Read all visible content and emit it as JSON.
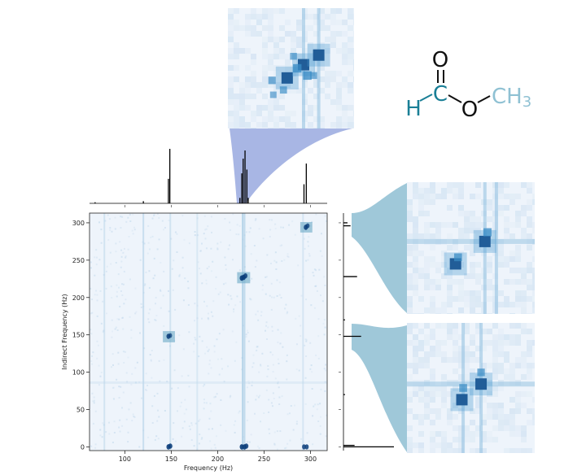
{
  "chart_data": {
    "type": "heatmap",
    "title": "",
    "xlabel": "Frequency (Hz)",
    "ylabel": "Indirect Frequency (Hz)",
    "xlim": [
      62,
      318
    ],
    "ylim": [
      -5,
      313
    ],
    "x_ticks": [
      {
        "value": 100,
        "label": "100"
      },
      {
        "value": 150,
        "label": "150"
      },
      {
        "value": 200,
        "label": "200"
      },
      {
        "value": 250,
        "label": "250"
      },
      {
        "value": 300,
        "label": "300"
      }
    ],
    "y_ticks": [
      {
        "value": 0,
        "label": "0"
      },
      {
        "value": 50,
        "label": "50"
      },
      {
        "value": 100,
        "label": "100"
      },
      {
        "value": 150,
        "label": "150"
      },
      {
        "value": 200,
        "label": "200"
      },
      {
        "value": 250,
        "label": "250"
      },
      {
        "value": 300,
        "label": "300"
      }
    ],
    "vertical_streaks": [
      {
        "x": 78,
        "strength": 0.35
      },
      {
        "x": 120,
        "strength": 0.45
      },
      {
        "x": 149,
        "strength": 0.35
      },
      {
        "x": 178,
        "strength": 0.25
      },
      {
        "x": 227,
        "strength": 0.7
      },
      {
        "x": 229,
        "strength": 0.55
      },
      {
        "x": 292,
        "strength": 0.3
      }
    ],
    "horizontal_streaks": [
      {
        "y": 86,
        "strength": 0.3
      }
    ],
    "peaks": [
      {
        "x": 147,
        "y": 148,
        "intensity": 0.85
      },
      {
        "x": 149,
        "y": 149,
        "intensity": 0.6
      },
      {
        "x": 226,
        "y": 226,
        "intensity": 0.95
      },
      {
        "x": 228,
        "y": 227,
        "intensity": 0.95
      },
      {
        "x": 230,
        "y": 229,
        "intensity": 0.8
      },
      {
        "x": 295,
        "y": 294,
        "intensity": 0.9
      },
      {
        "x": 297,
        "y": 296,
        "intensity": 0.7
      },
      {
        "x": 147,
        "y": 0,
        "intensity": 0.9
      },
      {
        "x": 149,
        "y": 1,
        "intensity": 0.9
      },
      {
        "x": 226,
        "y": 0,
        "intensity": 0.95
      },
      {
        "x": 229,
        "y": 0,
        "intensity": 0.95
      },
      {
        "x": 231,
        "y": 1,
        "intensity": 0.85
      },
      {
        "x": 293,
        "y": 0,
        "intensity": 0.8
      },
      {
        "x": 296,
        "y": 0,
        "intensity": 0.8
      }
    ],
    "highlight_boxes": [
      {
        "x0": 141,
        "x1": 154,
        "y0": 140,
        "y1": 155
      },
      {
        "x0": 221,
        "x1": 235,
        "y0": 219,
        "y1": 234
      },
      {
        "x0": 289,
        "x1": 302,
        "y0": 287,
        "y1": 301
      }
    ],
    "top_projection": {
      "lines": [
        {
          "x": 147,
          "height": 0.45
        },
        {
          "x": 148.5,
          "height": 1.0
        },
        {
          "x": 224,
          "height": 0.1
        },
        {
          "x": 226,
          "height": 0.55
        },
        {
          "x": 227.5,
          "height": 0.82
        },
        {
          "x": 229.5,
          "height": 0.97
        },
        {
          "x": 231.5,
          "height": 0.62
        },
        {
          "x": 233,
          "height": 0.1
        },
        {
          "x": 293,
          "height": 0.35
        },
        {
          "x": 295.5,
          "height": 0.73
        },
        {
          "x": 120,
          "height": 0.04
        },
        {
          "x": 68,
          "height": 0.02
        }
      ]
    },
    "side_projection": {
      "lines": [
        {
          "y": 0,
          "height": 1.0
        },
        {
          "y": 2,
          "height": 0.22
        },
        {
          "y": 148,
          "height": 0.35
        },
        {
          "y": 228,
          "height": 0.27
        },
        {
          "y": 296,
          "height": 0.14
        },
        {
          "y": 300,
          "height": 0.08
        },
        {
          "y": 170,
          "height": 0.03
        },
        {
          "y": 70,
          "height": 0.03
        }
      ]
    },
    "insets": [
      {
        "id": "inset-top",
        "peaks": [
          {
            "u": 0.47,
            "v": 0.58,
            "intensity": 1.0
          },
          {
            "u": 0.6,
            "v": 0.47,
            "intensity": 1.0
          },
          {
            "u": 0.72,
            "v": 0.39,
            "intensity": 1.0
          },
          {
            "u": 0.63,
            "v": 0.56,
            "intensity": 0.55
          },
          {
            "u": 0.55,
            "v": 0.5,
            "intensity": 0.55
          },
          {
            "u": 0.35,
            "v": 0.6,
            "intensity": 0.4
          },
          {
            "u": 0.44,
            "v": 0.68,
            "intensity": 0.35
          },
          {
            "u": 0.52,
            "v": 0.4,
            "intensity": 0.3
          },
          {
            "u": 0.68,
            "v": 0.56,
            "intensity": 0.3
          },
          {
            "u": 0.36,
            "v": 0.72,
            "intensity": 0.25
          }
        ],
        "streaks_v": [
          0.6,
          0.72
        ],
        "streaks_h": []
      },
      {
        "id": "inset-right-upper",
        "peaks": [
          {
            "u": 0.61,
            "v": 0.45,
            "intensity": 1.0
          },
          {
            "u": 0.38,
            "v": 0.62,
            "intensity": 1.0
          },
          {
            "u": 0.4,
            "v": 0.57,
            "intensity": 0.45
          },
          {
            "u": 0.63,
            "v": 0.38,
            "intensity": 0.5
          }
        ],
        "streaks_v": [
          0.61,
          0.7
        ],
        "streaks_h": [
          0.45
        ]
      },
      {
        "id": "inset-right-lower",
        "peaks": [
          {
            "u": 0.58,
            "v": 0.47,
            "intensity": 1.0
          },
          {
            "u": 0.43,
            "v": 0.59,
            "intensity": 1.0
          },
          {
            "u": 0.44,
            "v": 0.5,
            "intensity": 0.45
          },
          {
            "u": 0.58,
            "v": 0.38,
            "intensity": 0.4
          }
        ],
        "streaks_v": [
          0.58,
          0.44
        ],
        "streaks_h": [
          0.47
        ]
      }
    ]
  },
  "molecule": {
    "atoms": {
      "oxygen_top": "O",
      "carbon": "C",
      "hydrogen": "H",
      "oxygen_ester": "O",
      "methyl": "CH3"
    },
    "colors": {
      "hydrogen": "#1a7f96",
      "carbon": "#1a7f96",
      "oxygen": "#111111",
      "methyl": "#8fc1d3",
      "bonds": "#111111"
    }
  },
  "colors": {
    "heatmap_background": "#eef4fb",
    "heatmap_light": "#d6e8f5",
    "peak_mid": "#3b8fc4",
    "peak_dark": "#08306b",
    "box_fill": "#6aa8c7",
    "connector_top": "#7a8fd6",
    "connector_side": "#7fb6cc",
    "projection_line": "#000000"
  }
}
